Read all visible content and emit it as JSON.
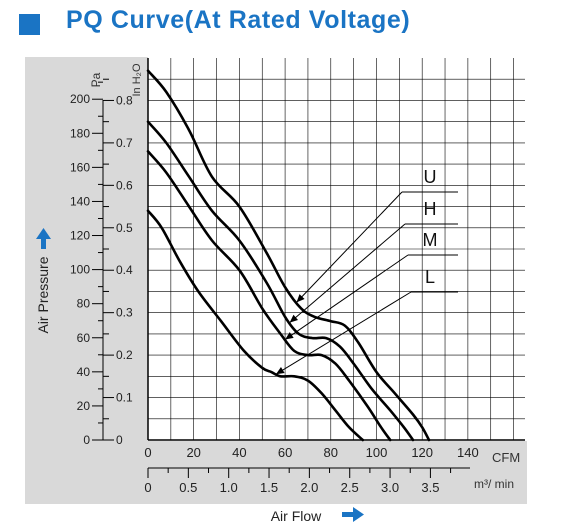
{
  "title": "PQ Curve(At Rated Voltage)",
  "colors": {
    "accent": "#1a74c4",
    "panel": "#d9d9d9",
    "line": "#000000"
  },
  "chart_data": {
    "type": "line",
    "title": "PQ Curve(At Rated Voltage)",
    "xlabel": "Air Flow",
    "ylabel": "Air Pressure",
    "x_unit_primary": "CFM",
    "x_unit_secondary": "m³/ min",
    "y_unit_primary": "Pa",
    "y_unit_secondary": "In H₂O",
    "x_ticks_cfm": [
      "0",
      "20",
      "40",
      "60",
      "80",
      "100",
      "120",
      "140"
    ],
    "x_ticks_m3min": [
      "0",
      "0.5",
      "1.0",
      "1.5",
      "2.0",
      "2.5",
      "3.0",
      "3.5"
    ],
    "y_ticks_pa": [
      "0",
      "20",
      "40",
      "60",
      "80",
      "100",
      "120",
      "140",
      "160",
      "180",
      "200"
    ],
    "y_ticks_inh2o": [
      "0",
      "0.1",
      "0.2",
      "0.3",
      "0.4",
      "0.5",
      "0.6",
      "0.7",
      "0.8"
    ],
    "xlim": [
      0,
      165
    ],
    "ylim": [
      0,
      0.9
    ],
    "grid": true,
    "series": [
      {
        "name": "U",
        "x": [
          0,
          8,
          18,
          28,
          40,
          52,
          60,
          67,
          73,
          80,
          86,
          92,
          100,
          108,
          116,
          120,
          123
        ],
        "y": [
          0.87,
          0.82,
          0.73,
          0.62,
          0.55,
          0.44,
          0.36,
          0.31,
          0.29,
          0.28,
          0.27,
          0.23,
          0.16,
          0.11,
          0.06,
          0.03,
          0
        ]
      },
      {
        "name": "H",
        "x": [
          0,
          8,
          18,
          28,
          40,
          52,
          60,
          66,
          72,
          78,
          84,
          90,
          98,
          106,
          112,
          116
        ],
        "y": [
          0.75,
          0.7,
          0.62,
          0.54,
          0.47,
          0.37,
          0.29,
          0.25,
          0.24,
          0.24,
          0.22,
          0.18,
          0.12,
          0.07,
          0.03,
          0
        ]
      },
      {
        "name": "M",
        "x": [
          0,
          8,
          18,
          28,
          40,
          50,
          58,
          64,
          70,
          76,
          82,
          88,
          96,
          102,
          106
        ],
        "y": [
          0.68,
          0.63,
          0.55,
          0.47,
          0.4,
          0.31,
          0.25,
          0.21,
          0.2,
          0.2,
          0.18,
          0.14,
          0.08,
          0.03,
          0
        ]
      },
      {
        "name": "L",
        "x": [
          0,
          6,
          14,
          22,
          32,
          42,
          50,
          54,
          58,
          64,
          70,
          76,
          82,
          88,
          94
        ],
        "y": [
          0.54,
          0.5,
          0.42,
          0.35,
          0.28,
          0.21,
          0.17,
          0.16,
          0.15,
          0.15,
          0.14,
          0.11,
          0.07,
          0.03,
          0
        ]
      }
    ]
  }
}
